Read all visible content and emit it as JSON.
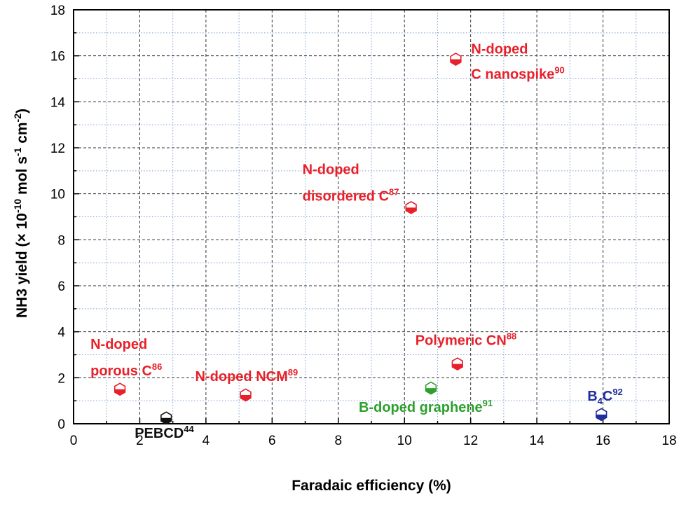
{
  "chart_data": {
    "type": "scatter",
    "xlabel": "Faradaic efficiency (%)",
    "ylabel": {
      "parts": [
        {
          "text": "NH3 yield (× 10",
          "style": "normal"
        },
        {
          "text": "-10",
          "style": "sup"
        },
        {
          "text": " mol s",
          "style": "normal"
        },
        {
          "text": "-1",
          "style": "sup"
        },
        {
          "text": " cm",
          "style": "normal"
        },
        {
          "text": "-2",
          "style": "sup"
        },
        {
          "text": ")",
          "style": "normal"
        }
      ]
    },
    "xlim": [
      0,
      18
    ],
    "ylim": [
      0,
      18
    ],
    "xticks": [
      "0",
      "2",
      "4",
      "6",
      "8",
      "10",
      "12",
      "14",
      "16",
      "18"
    ],
    "yticks": [
      "0",
      "2",
      "4",
      "6",
      "8",
      "10",
      "12",
      "14",
      "16",
      "18"
    ],
    "grid": true,
    "points": [
      {
        "id": "pebcd",
        "x": 2.8,
        "y": 0.25,
        "color": "#111111",
        "label": [
          {
            "text": "PEBCD",
            "style": "normal"
          },
          {
            "text": "44",
            "style": "sup"
          }
        ],
        "labelPos": "below"
      },
      {
        "id": "n-doped-porous-c",
        "x": 1.4,
        "y": 1.5,
        "color": "#e8202a",
        "label": [
          {
            "text": "N-doped",
            "style": "normal",
            "line": 1
          },
          {
            "text": "porous C",
            "style": "normal",
            "line": 2
          },
          {
            "text": "86",
            "style": "sup",
            "line": 2
          }
        ],
        "labelPos": "above-left"
      },
      {
        "id": "n-doped-ncm",
        "x": 5.2,
        "y": 1.25,
        "color": "#e8202a",
        "label": [
          {
            "text": "N-doped NCM",
            "style": "normal"
          },
          {
            "text": "89",
            "style": "sup"
          }
        ],
        "labelPos": "above"
      },
      {
        "id": "n-doped-disordered-c",
        "x": 10.2,
        "y": 9.4,
        "color": "#e8202a",
        "label": [
          {
            "text": "N-doped",
            "style": "normal",
            "line": 1
          },
          {
            "text": "disordered C",
            "style": "normal",
            "line": 2
          },
          {
            "text": "87",
            "style": "sup",
            "line": 2
          }
        ],
        "labelPos": "above-left"
      },
      {
        "id": "polymeric-cn",
        "x": 11.6,
        "y": 2.6,
        "color": "#e8202a",
        "label": [
          {
            "text": "Polymeric CN",
            "style": "normal"
          },
          {
            "text": "88",
            "style": "sup"
          }
        ],
        "labelPos": "above"
      },
      {
        "id": "b-doped-graphene",
        "x": 10.8,
        "y": 1.55,
        "color": "#2ca02c",
        "label": [
          {
            "text": "B-doped graphene",
            "style": "normal"
          },
          {
            "text": "91",
            "style": "sup"
          }
        ],
        "labelPos": "below"
      },
      {
        "id": "n-doped-c-nanospike",
        "x": 11.55,
        "y": 15.85,
        "color": "#e8202a",
        "label": [
          {
            "text": "N-doped",
            "style": "normal",
            "line": 1
          },
          {
            "text": "C nanospike",
            "style": "normal",
            "line": 2
          },
          {
            "text": "90",
            "style": "sup",
            "line": 2
          }
        ],
        "labelPos": "right"
      },
      {
        "id": "b4c",
        "x": 15.95,
        "y": 0.4,
        "color": "#1f2f9f",
        "label": [
          {
            "text": "B",
            "style": "normal"
          },
          {
            "text": "4",
            "style": "sub"
          },
          {
            "text": "C",
            "style": "normal"
          },
          {
            "text": "92",
            "style": "sup"
          }
        ],
        "labelPos": "above"
      }
    ]
  }
}
